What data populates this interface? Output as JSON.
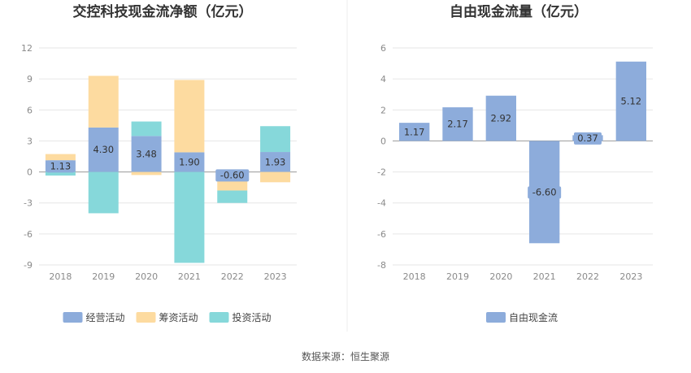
{
  "source_text": "数据来源：恒生聚源",
  "chart_data": [
    {
      "type": "bar",
      "stacked": true,
      "title": "交控科技现金流净额（亿元）",
      "categories": [
        "2018",
        "2019",
        "2020",
        "2021",
        "2022",
        "2023"
      ],
      "ylim": [
        -9,
        12
      ],
      "yticks": [
        -9,
        -6,
        -3,
        0,
        3,
        6,
        9,
        12
      ],
      "grid": true,
      "legend_position": "bottom",
      "series": [
        {
          "name": "经营活动",
          "color": "#8DACDB",
          "values": [
            1.13,
            4.3,
            3.48,
            1.9,
            -0.6,
            1.93
          ],
          "labels": [
            "1.13",
            "4.30",
            "3.48",
            "1.90",
            "-0.60",
            "1.93"
          ]
        },
        {
          "name": "筹资活动",
          "color": "#FDDBA0",
          "values": [
            0.6,
            5.0,
            -0.3,
            7.0,
            -1.2,
            -1.0
          ]
        },
        {
          "name": "投资活动",
          "color": "#86D8DA",
          "values": [
            -0.35,
            -4.0,
            1.4,
            -8.8,
            -1.2,
            2.5
          ]
        }
      ]
    },
    {
      "type": "bar",
      "title": "自由现金流量（亿元）",
      "categories": [
        "2018",
        "2019",
        "2020",
        "2021",
        "2022",
        "2023"
      ],
      "ylim": [
        -8,
        6
      ],
      "yticks": [
        -8,
        -6,
        -4,
        -2,
        0,
        2,
        4,
        6
      ],
      "grid": true,
      "legend_position": "bottom",
      "series": [
        {
          "name": "自由现金流",
          "color": "#8DACDB",
          "values": [
            1.17,
            2.17,
            2.92,
            -6.6,
            0.37,
            5.12
          ],
          "labels": [
            "1.17",
            "2.17",
            "2.92",
            "-6.60",
            "0.37",
            "5.12"
          ]
        }
      ]
    }
  ]
}
